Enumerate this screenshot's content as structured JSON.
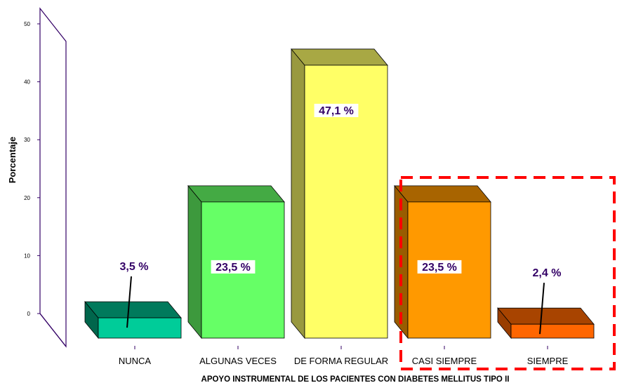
{
  "chart_data": {
    "type": "bar",
    "categories": [
      "NUNCA",
      "ALGUNAS VECES",
      "DE FORMA REGULAR",
      "CASI SIEMPRE",
      "SIEMPRE"
    ],
    "values": [
      3.5,
      23.5,
      47.1,
      23.5,
      2.4
    ],
    "data_labels": [
      "3,5 %",
      "23,5 %",
      "47,1 %",
      "23,5 %",
      "2,4 %"
    ],
    "colors": [
      {
        "front": "#00cc99",
        "top": "#007a5c",
        "side": "#00664c"
      },
      {
        "front": "#66ff66",
        "top": "#44aa44",
        "side": "#3d993d"
      },
      {
        "front": "#ffff66",
        "top": "#a8a844",
        "side": "#999940"
      },
      {
        "front": "#ff9900",
        "top": "#a86400",
        "side": "#995c00"
      },
      {
        "front": "#ff6600",
        "top": "#a84400",
        "side": "#993d00"
      }
    ],
    "xlabel": "APOYO INSTRUMENTAL DE LOS PACIENTES CON DIABETES MELLITUS TIPO II",
    "ylabel": "Porcentaje",
    "yticks": [
      "0",
      "10",
      "20",
      "30",
      "40",
      "50"
    ],
    "ylim": [
      0,
      50
    ],
    "grid": false,
    "label_color": "#330066",
    "highlight_color": "#ff0000"
  }
}
